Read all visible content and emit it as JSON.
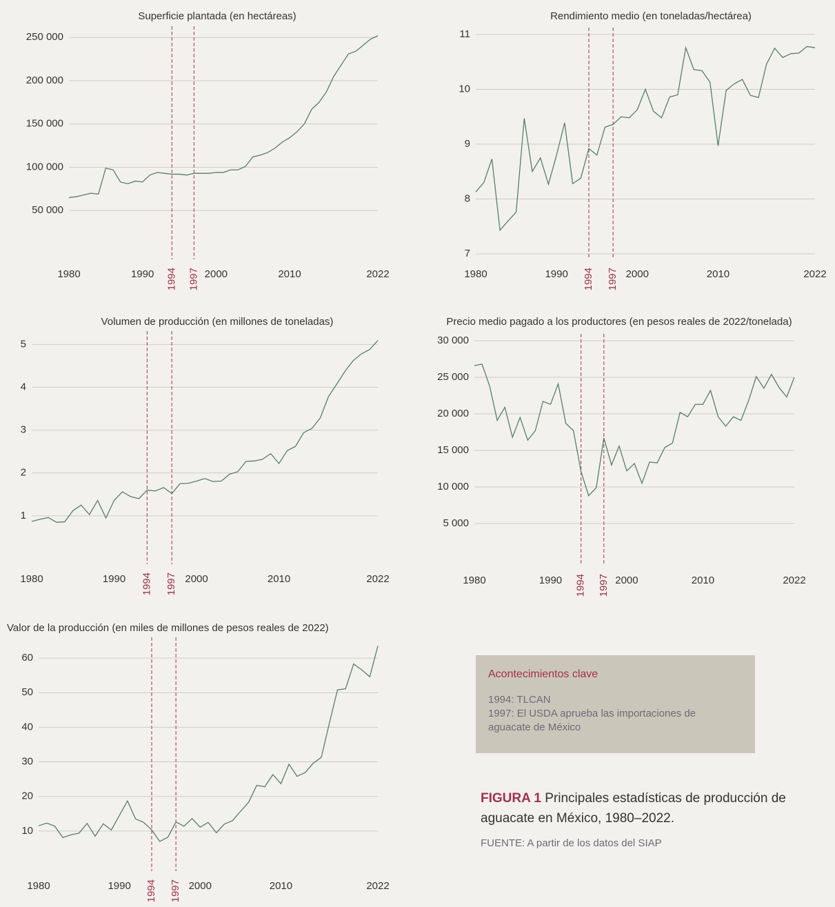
{
  "chart_data": [
    {
      "type": "line",
      "title": "Superficie plantada (en hectáreas)",
      "color": "#52806a",
      "vline_color": "#a3304c",
      "grid": true,
      "x": [
        1980,
        1981,
        1982,
        1983,
        1984,
        1985,
        1986,
        1987,
        1988,
        1989,
        1990,
        1991,
        1992,
        1993,
        1994,
        1995,
        1996,
        1997,
        1998,
        1999,
        2000,
        2001,
        2002,
        2003,
        2004,
        2005,
        2006,
        2007,
        2008,
        2009,
        2010,
        2011,
        2012,
        2013,
        2014,
        2015,
        2016,
        2017,
        2018,
        2019,
        2020,
        2021,
        2022
      ],
      "values": [
        65000,
        66000,
        68000,
        70000,
        69000,
        99000,
        97000,
        83000,
        81000,
        84000,
        83000,
        91000,
        94000,
        93000,
        92000,
        92000,
        91000,
        93000,
        93000,
        93000,
        94000,
        94000,
        97000,
        97000,
        101000,
        112000,
        114000,
        117000,
        122000,
        129000,
        134000,
        141000,
        150000,
        167000,
        175000,
        187000,
        205000,
        218000,
        231000,
        234000,
        241000,
        248000,
        252000
      ],
      "xlim": [
        1980,
        2022
      ],
      "xticks": [
        1980,
        1990,
        2000,
        2010,
        2022
      ],
      "vlines": [
        1994,
        1997
      ],
      "ylim": [
        0,
        255000
      ],
      "yticks": [
        {
          "value": 50000,
          "label": "50 000"
        },
        {
          "value": 100000,
          "label": "100 000"
        },
        {
          "value": 150000,
          "label": "150 000"
        },
        {
          "value": 200000,
          "label": "200 000"
        },
        {
          "value": 250000,
          "label": "250 000"
        }
      ]
    },
    {
      "type": "line",
      "title": "Rendimiento medio (en toneladas/hectárea)",
      "color": "#52806a",
      "vline_color": "#a3304c",
      "grid": true,
      "x": [
        1980,
        1981,
        1982,
        1983,
        1984,
        1985,
        1986,
        1987,
        1988,
        1989,
        1990,
        1991,
        1992,
        1993,
        1994,
        1995,
        1996,
        1997,
        1998,
        1999,
        2000,
        2001,
        2002,
        2003,
        2004,
        2005,
        2006,
        2007,
        2008,
        2009,
        2010,
        2011,
        2012,
        2013,
        2014,
        2015,
        2016,
        2017,
        2018,
        2019,
        2020,
        2021,
        2022
      ],
      "values": [
        8.13,
        8.3,
        8.73,
        7.43,
        7.6,
        7.76,
        9.47,
        8.5,
        8.75,
        8.27,
        8.8,
        9.39,
        8.28,
        8.38,
        8.92,
        8.8,
        9.31,
        9.36,
        9.5,
        9.48,
        9.63,
        10.0,
        9.6,
        9.48,
        9.86,
        9.9,
        10.76,
        10.36,
        10.34,
        10.13,
        8.97,
        9.98,
        10.1,
        10.18,
        9.89,
        9.85,
        10.46,
        10.75,
        10.58,
        10.65,
        10.66,
        10.78,
        10.76
      ],
      "xlim": [
        1980,
        2022
      ],
      "xticks": [
        1980,
        1990,
        2000,
        2010,
        2022
      ],
      "vlines": [
        1994,
        1997
      ],
      "ylim": [
        7,
        11
      ],
      "yticks": [
        7,
        8,
        9,
        10,
        11
      ]
    },
    {
      "type": "line",
      "title": "Volumen de producción (en millones de toneladas)",
      "color": "#52806a",
      "vline_color": "#a3304c",
      "grid": true,
      "x": [
        1980,
        1981,
        1982,
        1983,
        1984,
        1985,
        1986,
        1987,
        1988,
        1989,
        1990,
        1991,
        1992,
        1993,
        1994,
        1995,
        1996,
        1997,
        1998,
        1999,
        2000,
        2001,
        2002,
        2003,
        2004,
        2005,
        2006,
        2007,
        2008,
        2009,
        2010,
        2011,
        2012,
        2013,
        2014,
        2015,
        2016,
        2017,
        2018,
        2019,
        2020,
        2021,
        2022
      ],
      "values": [
        0.87,
        0.92,
        0.96,
        0.85,
        0.86,
        1.12,
        1.25,
        1.03,
        1.36,
        0.95,
        1.36,
        1.56,
        1.45,
        1.4,
        1.6,
        1.58,
        1.66,
        1.52,
        1.75,
        1.76,
        1.81,
        1.87,
        1.8,
        1.81,
        1.97,
        2.03,
        2.27,
        2.28,
        2.32,
        2.45,
        2.22,
        2.52,
        2.62,
        2.94,
        3.04,
        3.28,
        3.78,
        4.07,
        4.37,
        4.62,
        4.78,
        4.88,
        5.09
      ],
      "xlim": [
        1980,
        2022
      ],
      "xticks": [
        1980,
        1990,
        2000,
        2010,
        2022
      ],
      "vlines": [
        1994,
        1997
      ],
      "ylim": [
        0,
        5.15
      ],
      "yticks": [
        1,
        2,
        3,
        4,
        5
      ]
    },
    {
      "type": "line",
      "title": "Precio medio pagado a los productores (en pesos reales de 2022/tonelada)",
      "color": "#52806a",
      "vline_color": "#a3304c",
      "grid": true,
      "x": [
        1980,
        1981,
        1982,
        1983,
        1984,
        1985,
        1986,
        1987,
        1988,
        1989,
        1990,
        1991,
        1992,
        1993,
        1994,
        1995,
        1996,
        1997,
        1998,
        1999,
        2000,
        2001,
        2002,
        2003,
        2004,
        2005,
        2006,
        2007,
        2008,
        2009,
        2010,
        2011,
        2012,
        2013,
        2014,
        2015,
        2016,
        2017,
        2018,
        2019,
        2020,
        2021,
        2022
      ],
      "values": [
        26600,
        26800,
        23800,
        19100,
        20900,
        16800,
        19500,
        16400,
        17700,
        21700,
        21300,
        24100,
        18700,
        17700,
        12100,
        8800,
        9900,
        16700,
        13000,
        15600,
        12200,
        13200,
        10500,
        13400,
        13300,
        15400,
        16000,
        20200,
        19600,
        21300,
        21300,
        23200,
        19600,
        18300,
        19600,
        19100,
        21800,
        25100,
        23500,
        25400,
        23600,
        22300,
        25000
      ],
      "xlim": [
        1980,
        2022
      ],
      "xticks": [
        1980,
        1990,
        2000,
        2010,
        2022
      ],
      "vlines": [
        1994,
        1997
      ],
      "ylim": [
        0,
        30000
      ],
      "yticks": [
        {
          "value": 5000,
          "label": "5 000"
        },
        {
          "value": 10000,
          "label": "10 000"
        },
        {
          "value": 15000,
          "label": "15 000"
        },
        {
          "value": 20000,
          "label": "20 000"
        },
        {
          "value": 25000,
          "label": "25 000"
        },
        {
          "value": 30000,
          "label": "30 000"
        }
      ]
    },
    {
      "type": "line",
      "title": "Valor de la producción (en miles de millones de pesos reales de 2022)",
      "color": "#52806a",
      "vline_color": "#a3304c",
      "grid": true,
      "x": [
        1980,
        1981,
        1982,
        1983,
        1984,
        1985,
        1986,
        1987,
        1988,
        1989,
        1990,
        1991,
        1992,
        1993,
        1994,
        1995,
        1996,
        1997,
        1998,
        1999,
        2000,
        2001,
        2002,
        2003,
        2004,
        2005,
        2006,
        2007,
        2008,
        2009,
        2010,
        2011,
        2012,
        2013,
        2014,
        2015,
        2016,
        2017,
        2018,
        2019,
        2020,
        2021,
        2022
      ],
      "values": [
        11.5,
        12.3,
        11.4,
        8.1,
        8.9,
        9.4,
        12.2,
        8.5,
        12.1,
        10.3,
        14.5,
        18.7,
        13.5,
        12.5,
        10.3,
        7.0,
        8.2,
        12.6,
        11.4,
        13.6,
        11.1,
        12.5,
        9.5,
        12.0,
        13.0,
        15.7,
        18.3,
        23.2,
        22.8,
        26.3,
        23.7,
        29.3,
        25.8,
        26.9,
        29.6,
        31.3,
        41.2,
        50.8,
        51.1,
        58.3,
        56.6,
        54.6,
        63.5
      ],
      "xlim": [
        1980,
        2022
      ],
      "xticks": [
        1980,
        1990,
        2000,
        2010,
        2022
      ],
      "vlines": [
        1994,
        1997
      ],
      "ylim": [
        0,
        64
      ],
      "yticks": [
        10,
        20,
        30,
        40,
        50,
        60
      ]
    }
  ],
  "key_events": {
    "title": "Acontecimientos clave",
    "lines": [
      "1994: TLCAN",
      "1997: El USDA aprueba las importaciones de",
      "aguacate de México"
    ]
  },
  "caption": {
    "label": "FIGURA 1",
    "lines": [
      "Principales estadísticas de producción de",
      "aguacate en México, 1980–2022."
    ]
  },
  "source": "FUENTE: A partir de los datos del SIAP"
}
